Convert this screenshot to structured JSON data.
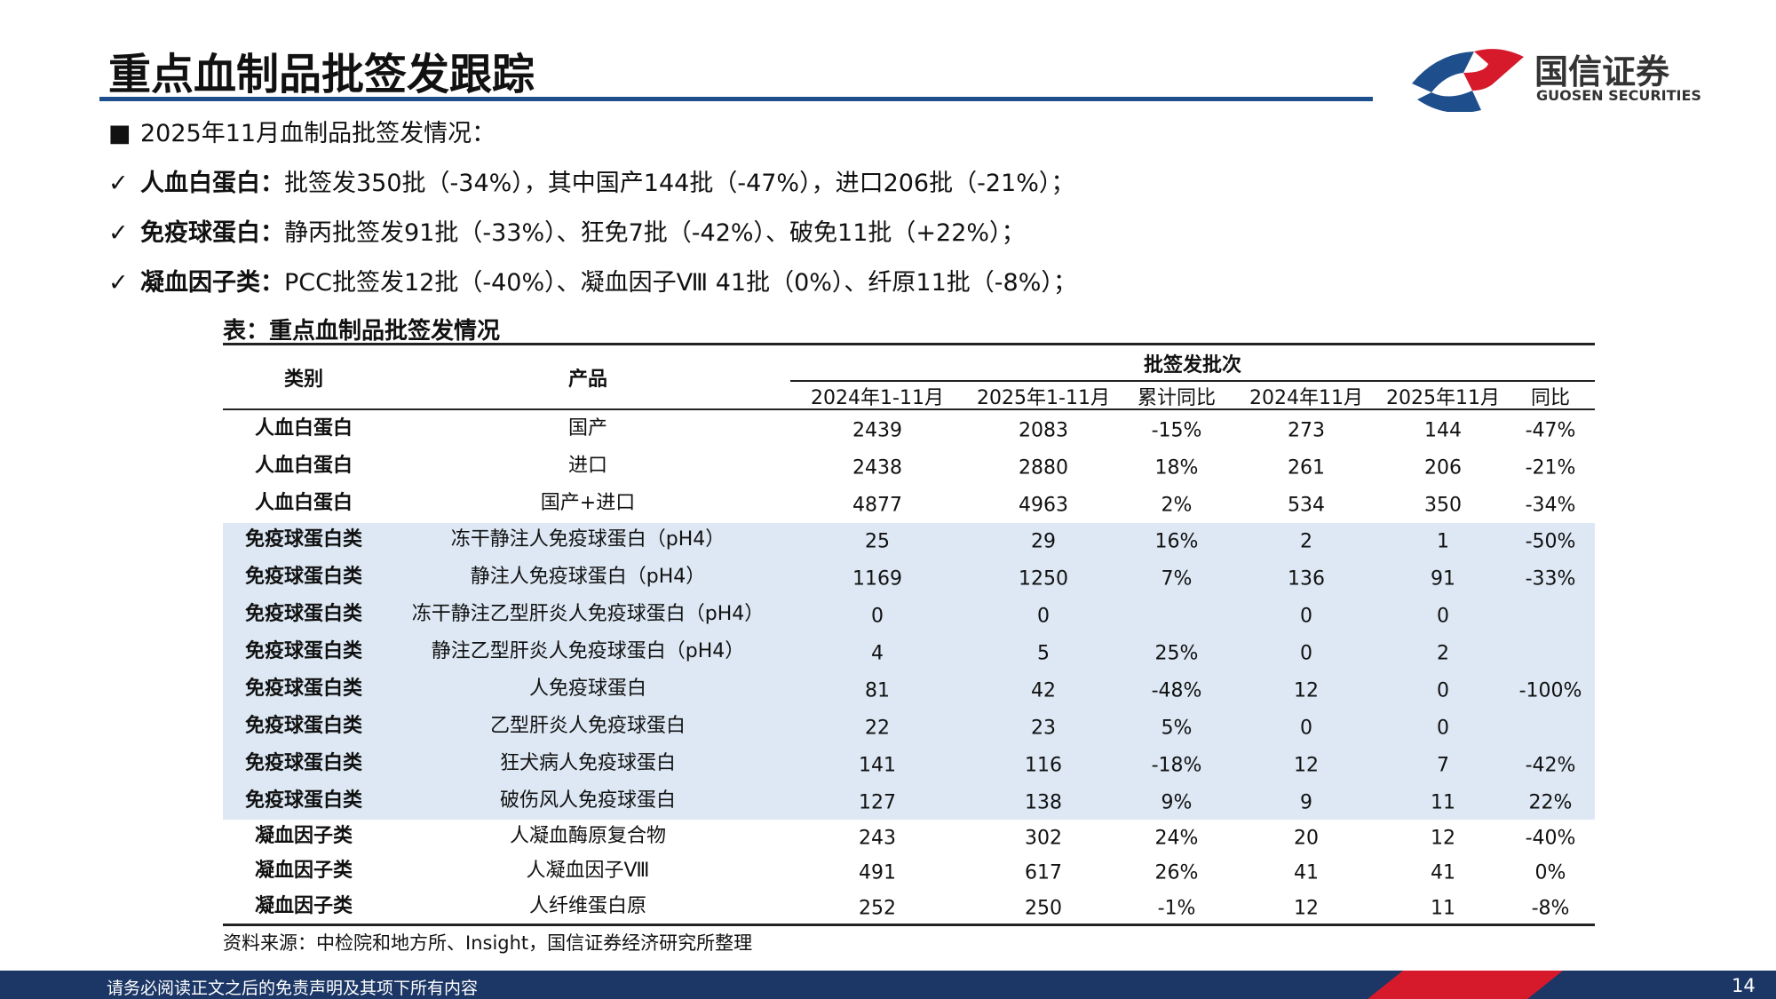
{
  "header": {
    "title": "重点血制品批签发跟踪"
  },
  "brand": {
    "name": "国信证券",
    "name_en": "GUOSEN SECURITIES"
  },
  "bullets": [
    {
      "text": "2025年11月血制品批签发情况："
    },
    {
      "label": "人血白蛋白：",
      "text": "批签发350批（-34%），其中国产144批（-47%），进口206批（-21%）；"
    },
    {
      "label": "免疫球蛋白：",
      "text": "静丙批签发91批（-33%）、狂免7批（-42%）、破免11批（+22%）；"
    },
    {
      "label": "凝血因子类：",
      "text": "PCC批签发12批（-40%）、凝血因子Ⅷ 41批（0%）、纤原11批（-8%）；"
    }
  ],
  "table": {
    "caption": "表：重点血制品批签发情况",
    "group_header": "批签发批次",
    "columns": [
      "类别",
      "产品",
      "2024年1-11月",
      "2025年1-11月",
      "累计同比",
      "2024年11月",
      "2025年11月",
      "同比"
    ],
    "rows": [
      [
        "人血白蛋白",
        "国产",
        "2439",
        "2083",
        "-15%",
        "273",
        "144",
        "-47%"
      ],
      [
        "人血白蛋白",
        "进口",
        "2438",
        "2880",
        "18%",
        "261",
        "206",
        "-21%"
      ],
      [
        "人血白蛋白",
        "国产+进口",
        "4877",
        "4963",
        "2%",
        "534",
        "350",
        "-34%"
      ],
      [
        "免疫球蛋白类",
        "冻干静注人免疫球蛋白（pH4）",
        "25",
        "29",
        "16%",
        "2",
        "1",
        "-50%"
      ],
      [
        "免疫球蛋白类",
        "静注人免疫球蛋白（pH4）",
        "1169",
        "1250",
        "7%",
        "136",
        "91",
        "-33%"
      ],
      [
        "免疫球蛋白类",
        "冻干静注乙型肝炎人免疫球蛋白（pH4）",
        "0",
        "0",
        null,
        "0",
        "0",
        null
      ],
      [
        "免疫球蛋白类",
        "静注乙型肝炎人免疫球蛋白（pH4）",
        "4",
        "5",
        "25%",
        "0",
        "2",
        null
      ],
      [
        "免疫球蛋白类",
        "人免疫球蛋白",
        "81",
        "42",
        "-48%",
        "12",
        "0",
        "-100%"
      ],
      [
        "免疫球蛋白类",
        "乙型肝炎人免疫球蛋白",
        "22",
        "23",
        "5%",
        "0",
        "0",
        null
      ],
      [
        "免疫球蛋白类",
        "狂犬病人免疫球蛋白",
        "141",
        "116",
        "-18%",
        "12",
        "7",
        "-42%"
      ],
      [
        "免疫球蛋白类",
        "破伤风人免疫球蛋白",
        "127",
        "138",
        "9%",
        "9",
        "11",
        "22%"
      ],
      [
        "凝血因子类",
        "人凝血酶原复合物",
        "243",
        "302",
        "24%",
        "20",
        "12",
        "-40%"
      ],
      [
        "凝血因子类",
        "人凝血因子Ⅷ",
        "491",
        "617",
        "26%",
        "41",
        "41",
        "0%"
      ],
      [
        "凝血因子类",
        "人纤维蛋白原",
        "252",
        "250",
        "-1%",
        "12",
        "11",
        "-8%"
      ]
    ],
    "source": "资料来源：中检院和地方所、Insight，国信证券经济研究所整理"
  },
  "footer": {
    "disclaimer": "请务必阅读正文之后的免责声明及其项下所有内容",
    "page": "14"
  }
}
